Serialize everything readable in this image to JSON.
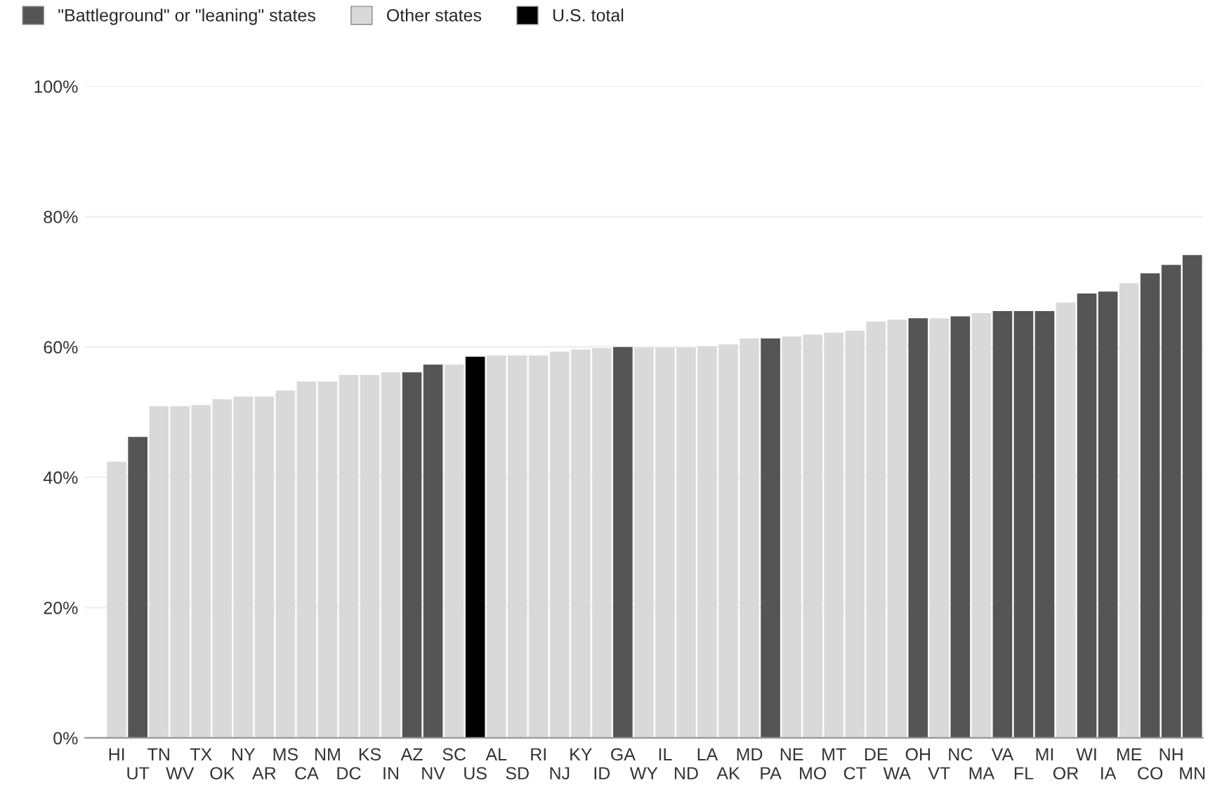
{
  "chart_data": {
    "type": "bar",
    "categories": [
      "HI",
      "UT",
      "TN",
      "WV",
      "TX",
      "OK",
      "NY",
      "AR",
      "MS",
      "CA",
      "NM",
      "DC",
      "KS",
      "IN",
      "AZ",
      "NV",
      "SC",
      "US",
      "AL",
      "SD",
      "RI",
      "NJ",
      "KY",
      "ID",
      "GA",
      "WY",
      "IL",
      "ND",
      "LA",
      "AK",
      "MD",
      "PA",
      "NE",
      "MO",
      "MT",
      "CT",
      "DE",
      "WA",
      "OH",
      "VT",
      "NC",
      "MA",
      "VA",
      "FL",
      "MI",
      "OR",
      "WI",
      "IA",
      "ME",
      "CO",
      "NH",
      "MN"
    ],
    "series": [
      {
        "name": "\"Battleground\" or \"leaning\" states",
        "color": "#555555",
        "values": [
          null,
          46.2,
          null,
          null,
          null,
          null,
          null,
          null,
          null,
          null,
          null,
          null,
          null,
          null,
          56.1,
          57.3,
          null,
          null,
          null,
          null,
          null,
          null,
          null,
          null,
          60.0,
          null,
          null,
          null,
          null,
          null,
          null,
          61.3,
          null,
          null,
          null,
          null,
          null,
          null,
          64.4,
          null,
          64.7,
          null,
          65.5,
          65.5,
          65.5,
          null,
          68.2,
          68.5,
          null,
          71.3,
          72.6,
          74.1
        ]
      },
      {
        "name": "Other states",
        "color": "#d9d9d9",
        "values": [
          42.4,
          null,
          50.9,
          50.9,
          51.1,
          52.0,
          52.4,
          52.4,
          53.3,
          54.7,
          54.7,
          55.7,
          55.7,
          56.1,
          null,
          null,
          57.3,
          null,
          58.7,
          58.7,
          58.7,
          59.3,
          59.6,
          59.8,
          null,
          59.9,
          59.9,
          59.9,
          60.1,
          60.4,
          61.3,
          null,
          61.6,
          61.9,
          62.2,
          62.5,
          63.9,
          64.2,
          null,
          64.4,
          null,
          65.2,
          null,
          null,
          null,
          66.8,
          null,
          null,
          69.8,
          null,
          null,
          null
        ]
      },
      {
        "name": "U.S. total",
        "color": "#000000",
        "values": [
          null,
          null,
          null,
          null,
          null,
          null,
          null,
          null,
          null,
          null,
          null,
          null,
          null,
          null,
          null,
          null,
          null,
          58.5,
          null,
          null,
          null,
          null,
          null,
          null,
          null,
          null,
          null,
          null,
          null,
          null,
          null,
          null,
          null,
          null,
          null,
          null,
          null,
          null,
          null,
          null,
          null,
          null,
          null,
          null,
          null,
          null,
          null,
          null,
          null,
          null,
          null,
          null
        ]
      }
    ],
    "ylim": [
      0,
      100
    ],
    "yticks": [
      {
        "value": 0,
        "label": "0%"
      },
      {
        "value": 20,
        "label": "20%"
      },
      {
        "value": 40,
        "label": "40%"
      },
      {
        "value": 60,
        "label": "60%"
      },
      {
        "value": 80,
        "label": "80%"
      },
      {
        "value": 100,
        "label": "100%"
      }
    ],
    "grid": "y",
    "legend": "top left"
  }
}
